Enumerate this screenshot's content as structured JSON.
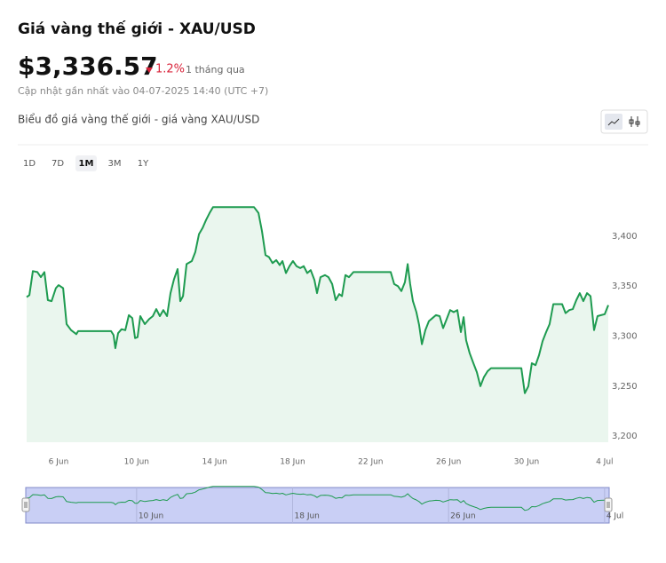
{
  "header": {
    "title": "Giá vàng thế giới - XAU/USD",
    "price": "$3,336.57",
    "change": "1.2%",
    "period": "1 tháng qua",
    "updated": "Cập nhật gần nhất vào 04-07-2025 14:40 (UTC +7)"
  },
  "chart_title": "Biểu đồ giá vàng thế giới - giá vàng XAU/USD",
  "ranges": [
    "1D",
    "7D",
    "1M",
    "3M",
    "1Y"
  ],
  "selected": "1M",
  "chart_data": {
    "type": "line",
    "color": "#1e9b50",
    "fill": "#eaf6ee",
    "x": [
      4.36,
      4.5,
      4.68,
      4.91,
      5.09,
      5.27,
      5.45,
      5.64,
      5.86,
      6.0,
      6.23,
      6.41,
      6.64,
      6.91,
      7.0,
      8.69,
      8.82,
      8.91,
      9.05,
      9.23,
      9.42,
      9.6,
      9.78,
      9.92,
      10.05,
      10.19,
      10.42,
      10.64,
      10.83,
      11.01,
      11.19,
      11.37,
      11.56,
      11.74,
      11.92,
      12.1,
      12.24,
      12.38,
      12.56,
      12.83,
      13.01,
      13.2,
      13.38,
      13.56,
      13.74,
      13.92,
      16.02,
      16.25,
      16.43,
      16.61,
      16.79,
      16.97,
      17.16,
      17.34,
      17.48,
      17.66,
      17.84,
      18.02,
      18.2,
      18.39,
      18.57,
      18.75,
      18.93,
      19.12,
      19.25,
      19.43,
      19.66,
      19.84,
      20.03,
      20.21,
      20.39,
      20.53,
      20.71,
      20.89,
      21.12,
      23.03,
      23.21,
      23.4,
      23.58,
      23.76,
      23.9,
      24.03,
      24.17,
      24.35,
      24.49,
      24.63,
      24.81,
      24.99,
      25.17,
      25.35,
      25.54,
      25.72,
      25.9,
      26.08,
      26.26,
      26.45,
      26.63,
      26.77,
      26.9,
      27.08,
      27.27,
      27.45,
      27.63,
      27.81,
      28.0,
      28.18,
      29.73,
      29.91,
      30.09,
      30.27,
      30.46,
      30.64,
      30.82,
      31.0,
      31.18,
      31.37,
      31.82,
      32.0,
      32.19,
      32.37,
      32.55,
      32.73,
      32.91,
      33.1,
      33.28,
      33.46,
      33.64,
      33.82,
      34.01,
      34.19
    ],
    "values": [
      3339,
      3341,
      3365,
      3364,
      3359,
      3364,
      3336,
      3335,
      3348,
      3351,
      3348,
      3312,
      3306,
      3302,
      3305,
      3305,
      3301,
      3288,
      3303,
      3307,
      3306,
      3321,
      3318,
      3298,
      3299,
      3320,
      3312,
      3317,
      3320,
      3327,
      3320,
      3326,
      3320,
      3343,
      3357,
      3367,
      3335,
      3340,
      3372,
      3375,
      3384,
      3402,
      3408,
      3416,
      3423,
      3429,
      3429,
      3423,
      3405,
      3381,
      3379,
      3373,
      3376,
      3371,
      3375,
      3363,
      3370,
      3375,
      3370,
      3368,
      3370,
      3363,
      3366,
      3356,
      3343,
      3359,
      3361,
      3359,
      3352,
      3336,
      3342,
      3340,
      3361,
      3359,
      3364,
      3364,
      3352,
      3350,
      3345,
      3354,
      3372,
      3352,
      3335,
      3324,
      3311,
      3292,
      3306,
      3315,
      3318,
      3321,
      3320,
      3308,
      3317,
      3326,
      3324,
      3326,
      3304,
      3319,
      3296,
      3283,
      3273,
      3264,
      3250,
      3259,
      3265,
      3268,
      3268,
      3243,
      3250,
      3273,
      3271,
      3281,
      3295,
      3304,
      3312,
      3332,
      3332,
      3323,
      3326,
      3327,
      3336,
      3343,
      3335,
      3343,
      3340,
      3306,
      3320,
      3321,
      3322,
      3331
    ],
    "xlim": [
      4.36,
      34.19
    ],
    "xticks": [
      {
        "value": 6,
        "label": "6 Jun"
      },
      {
        "value": 10,
        "label": "10 Jun"
      },
      {
        "value": 14,
        "label": "14 Jun"
      },
      {
        "value": 18,
        "label": "18 Jun"
      },
      {
        "value": 22,
        "label": "22 Jun"
      },
      {
        "value": 26,
        "label": "26 Jun"
      },
      {
        "value": 30,
        "label": "30 Jun"
      },
      {
        "value": 34,
        "label": "4 Jul"
      }
    ],
    "ylim": [
      3194,
      3454
    ],
    "yticks": [
      {
        "value": 3200,
        "label": "3,200"
      },
      {
        "value": 3250,
        "label": "3,250"
      },
      {
        "value": 3300,
        "label": "3,300"
      },
      {
        "value": 3350,
        "label": "3,350"
      },
      {
        "value": 3400,
        "label": "3,400"
      }
    ]
  },
  "navigator": {
    "xticks": [
      {
        "value": 10,
        "label": "10 Jun"
      },
      {
        "value": 18,
        "label": "18 Jun"
      },
      {
        "value": 26,
        "label": "26 Jun"
      },
      {
        "value": 34,
        "label": "4 Jul"
      }
    ]
  }
}
